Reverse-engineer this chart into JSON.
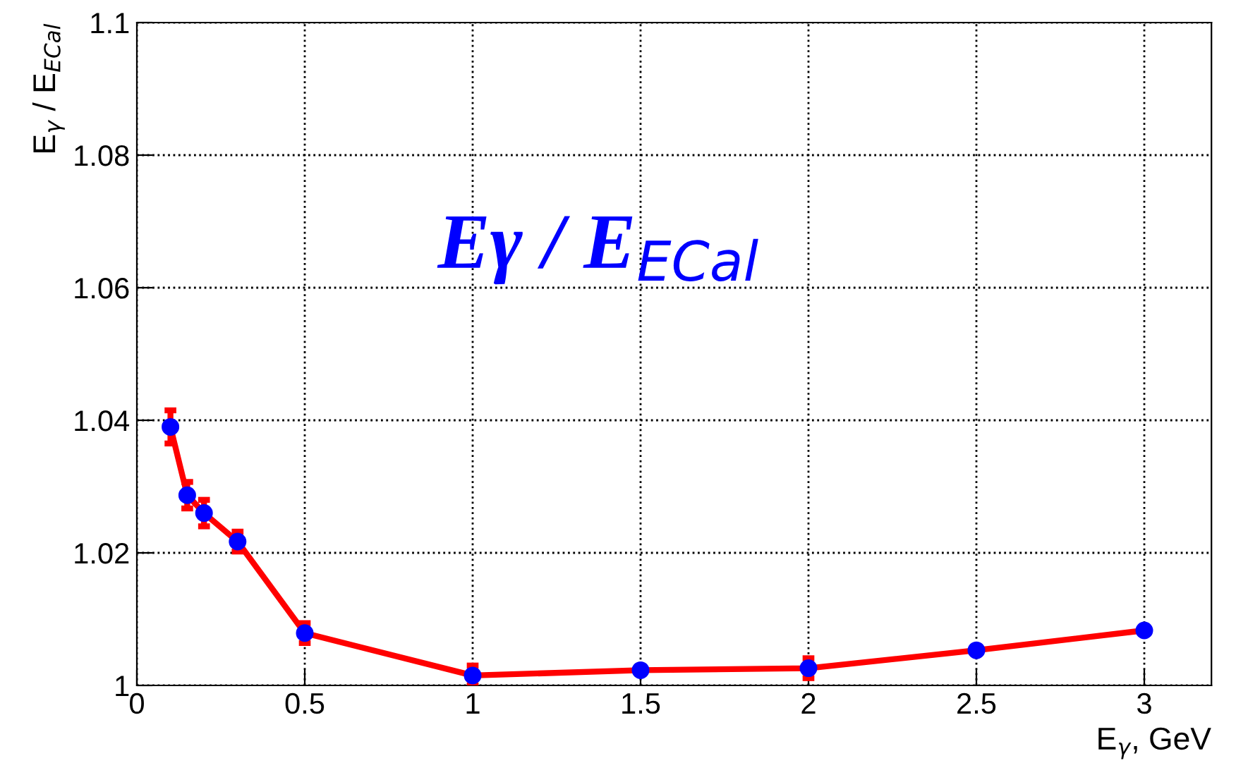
{
  "chart_data": {
    "type": "line",
    "xlabel": "E$_{γ}$, GeV",
    "ylabel": "E$_{γ}$ / E$_{ECal}$",
    "annotations": [
      "Eγ / E$_{ECal}$"
    ],
    "x": [
      0.1,
      0.15,
      0.2,
      0.3,
      0.5,
      1,
      1.5,
      2,
      2.5,
      3
    ],
    "series": [
      {
        "color": "#ff0000",
        "values": [
          1.039,
          1.0287,
          1.026,
          1.0217,
          1.0079,
          1.0015,
          1.0023,
          1.0026,
          1.0053,
          1.0083
        ],
        "errors": [
          0.0025,
          0.002,
          0.002,
          0.0015,
          0.0015,
          0.0015,
          null,
          0.0015,
          null,
          null
        ]
      }
    ],
    "marker": "circle",
    "line_style": "solid",
    "xlim": [
      0,
      3.2
    ],
    "ylim": [
      1,
      1.1
    ],
    "xticks": [
      0,
      0.5,
      1,
      1.5,
      2,
      2.5,
      3
    ],
    "yticks": [
      1,
      1.02,
      1.04,
      1.06,
      1.08,
      1.1
    ],
    "grid": true
  }
}
